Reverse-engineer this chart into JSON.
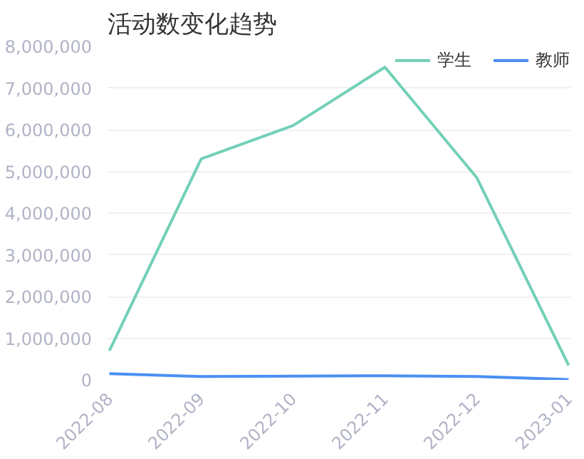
{
  "chart_data": {
    "type": "line",
    "title": "活动数变化趋势",
    "categories": [
      "2022-08",
      "2022-09",
      "2022-10",
      "2022-11",
      "2022-12",
      "2023-01"
    ],
    "series": [
      {
        "name": "学生",
        "color": "#73d0b8",
        "values": [
          700000,
          5300000,
          6100000,
          7500000,
          4850000,
          350000
        ]
      },
      {
        "name": "教师",
        "color": "#4a8ff3",
        "values": [
          150000,
          80000,
          90000,
          100000,
          80000,
          10000
        ]
      }
    ],
    "ylim": [
      0,
      8000000
    ],
    "yticks": [
      {
        "value": 0,
        "label": "0"
      },
      {
        "value": 1000000,
        "label": "1,000,000"
      },
      {
        "value": 2000000,
        "label": "2,000,000"
      },
      {
        "value": 3000000,
        "label": "3,000,000"
      },
      {
        "value": 4000000,
        "label": "4,000,000"
      },
      {
        "value": 5000000,
        "label": "5,000,000"
      },
      {
        "value": 6000000,
        "label": "6,000,000"
      },
      {
        "value": 7000000,
        "label": "7,000,000"
      },
      {
        "value": 8000000,
        "label": "8,000,000"
      }
    ],
    "grid": "y",
    "legend": "top right",
    "marker": "none",
    "line_style": "solid"
  }
}
